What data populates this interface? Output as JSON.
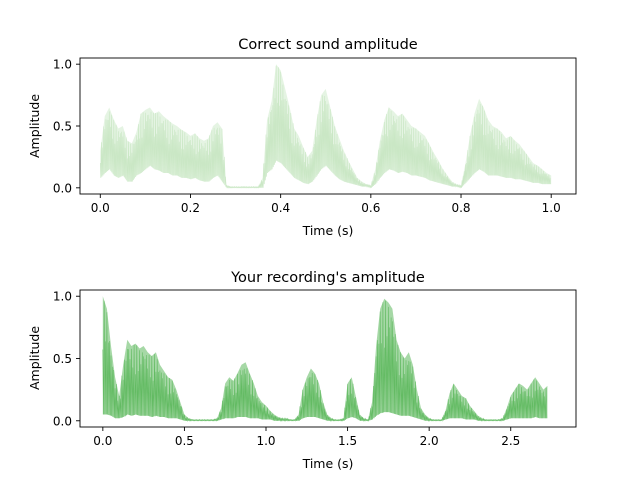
{
  "chart_data": [
    {
      "type": "line",
      "title": "Correct sound amplitude",
      "xlabel": "Time (s)",
      "ylabel": "Amplitude",
      "xlim": [
        -0.045,
        1.055
      ],
      "ylim": [
        -0.05,
        1.05
      ],
      "xticks": [
        0.0,
        0.2,
        0.4,
        0.6,
        0.8,
        1.0
      ],
      "xtick_labels": [
        "0.0",
        "0.2",
        "0.4",
        "0.6",
        "0.8",
        "1.0"
      ],
      "yticks": [
        0.0,
        0.5,
        1.0
      ],
      "ytick_labels": [
        "0.0",
        "0.5",
        "1.0"
      ],
      "grid": false,
      "series": [
        {
          "color": "#c6e6c1",
          "x": [
            0.0,
            0.01,
            0.02,
            0.03,
            0.04,
            0.05,
            0.06,
            0.07,
            0.08,
            0.09,
            0.1,
            0.11,
            0.12,
            0.13,
            0.14,
            0.15,
            0.16,
            0.17,
            0.18,
            0.19,
            0.2,
            0.21,
            0.22,
            0.23,
            0.24,
            0.25,
            0.26,
            0.27,
            0.28,
            0.29,
            0.3,
            0.31,
            0.32,
            0.33,
            0.34,
            0.35,
            0.36,
            0.37,
            0.38,
            0.39,
            0.4,
            0.41,
            0.42,
            0.43,
            0.44,
            0.45,
            0.46,
            0.47,
            0.48,
            0.49,
            0.5,
            0.51,
            0.52,
            0.53,
            0.54,
            0.55,
            0.56,
            0.57,
            0.58,
            0.59,
            0.6,
            0.61,
            0.62,
            0.63,
            0.64,
            0.65,
            0.66,
            0.67,
            0.68,
            0.69,
            0.7,
            0.71,
            0.72,
            0.73,
            0.74,
            0.75,
            0.76,
            0.77,
            0.78,
            0.79,
            0.8,
            0.81,
            0.82,
            0.83,
            0.84,
            0.85,
            0.86,
            0.87,
            0.88,
            0.89,
            0.9,
            0.91,
            0.92,
            0.93,
            0.94,
            0.95,
            0.96,
            0.97,
            0.98,
            0.99,
            1.0
          ],
          "max": [
            0.3,
            0.58,
            0.65,
            0.55,
            0.48,
            0.5,
            0.38,
            0.36,
            0.45,
            0.6,
            0.63,
            0.65,
            0.6,
            0.62,
            0.58,
            0.55,
            0.52,
            0.5,
            0.47,
            0.45,
            0.42,
            0.44,
            0.4,
            0.38,
            0.4,
            0.5,
            0.53,
            0.48,
            0.02,
            0.01,
            0.01,
            0.01,
            0.01,
            0.01,
            0.01,
            0.01,
            0.08,
            0.55,
            0.7,
            1.0,
            0.95,
            0.8,
            0.65,
            0.48,
            0.42,
            0.33,
            0.25,
            0.3,
            0.55,
            0.75,
            0.8,
            0.65,
            0.5,
            0.4,
            0.3,
            0.22,
            0.15,
            0.08,
            0.05,
            0.03,
            0.02,
            0.15,
            0.38,
            0.55,
            0.65,
            0.62,
            0.58,
            0.6,
            0.55,
            0.5,
            0.48,
            0.45,
            0.42,
            0.35,
            0.28,
            0.22,
            0.15,
            0.1,
            0.05,
            0.03,
            0.02,
            0.2,
            0.42,
            0.6,
            0.72,
            0.65,
            0.55,
            0.5,
            0.48,
            0.45,
            0.4,
            0.42,
            0.38,
            0.35,
            0.3,
            0.25,
            0.2,
            0.18,
            0.15,
            0.12,
            0.1
          ],
          "min": [
            0.08,
            0.12,
            0.15,
            0.1,
            0.08,
            0.1,
            0.05,
            0.05,
            0.1,
            0.12,
            0.15,
            0.18,
            0.15,
            0.14,
            0.12,
            0.12,
            0.1,
            0.1,
            0.08,
            0.08,
            0.07,
            0.08,
            0.06,
            0.05,
            0.05,
            0.08,
            0.1,
            0.05,
            0.0,
            0.0,
            0.0,
            0.0,
            0.0,
            0.0,
            0.0,
            0.0,
            0.0,
            0.12,
            0.15,
            0.22,
            0.2,
            0.16,
            0.12,
            0.08,
            0.06,
            0.04,
            0.03,
            0.05,
            0.1,
            0.15,
            0.18,
            0.14,
            0.1,
            0.07,
            0.05,
            0.04,
            0.03,
            0.02,
            0.01,
            0.01,
            0.0,
            0.03,
            0.08,
            0.12,
            0.15,
            0.14,
            0.12,
            0.13,
            0.12,
            0.1,
            0.1,
            0.09,
            0.08,
            0.06,
            0.05,
            0.04,
            0.03,
            0.02,
            0.01,
            0.01,
            0.0,
            0.04,
            0.08,
            0.12,
            0.15,
            0.13,
            0.1,
            0.1,
            0.1,
            0.09,
            0.08,
            0.08,
            0.07,
            0.07,
            0.06,
            0.05,
            0.04,
            0.04,
            0.03,
            0.03,
            0.03
          ]
        }
      ]
    },
    {
      "type": "line",
      "title": "Your recording's amplitude",
      "xlabel": "Time (s)",
      "ylabel": "Amplitude",
      "xlim": [
        -0.14,
        2.9
      ],
      "ylim": [
        -0.05,
        1.05
      ],
      "xticks": [
        0.0,
        0.5,
        1.0,
        1.5,
        2.0,
        2.5
      ],
      "xtick_labels": [
        "0.0",
        "0.5",
        "1.0",
        "1.5",
        "2.0",
        "2.5"
      ],
      "yticks": [
        0.0,
        0.5,
        1.0
      ],
      "ytick_labels": [
        "0.0",
        "0.5",
        "1.0"
      ],
      "grid": false,
      "series": [
        {
          "color": "#5cb85c",
          "x": [
            0.0,
            0.025,
            0.05,
            0.075,
            0.1,
            0.125,
            0.15,
            0.175,
            0.2,
            0.225,
            0.25,
            0.275,
            0.3,
            0.325,
            0.35,
            0.375,
            0.4,
            0.425,
            0.45,
            0.475,
            0.5,
            0.525,
            0.55,
            0.575,
            0.6,
            0.625,
            0.65,
            0.675,
            0.7,
            0.725,
            0.75,
            0.775,
            0.8,
            0.825,
            0.85,
            0.875,
            0.9,
            0.925,
            0.95,
            0.975,
            1.0,
            1.025,
            1.05,
            1.075,
            1.1,
            1.125,
            1.15,
            1.175,
            1.2,
            1.225,
            1.25,
            1.275,
            1.3,
            1.325,
            1.35,
            1.375,
            1.4,
            1.425,
            1.45,
            1.475,
            1.5,
            1.525,
            1.55,
            1.575,
            1.6,
            1.625,
            1.65,
            1.675,
            1.7,
            1.725,
            1.75,
            1.775,
            1.8,
            1.825,
            1.85,
            1.875,
            1.9,
            1.925,
            1.95,
            1.975,
            2.0,
            2.025,
            2.05,
            2.075,
            2.1,
            2.125,
            2.15,
            2.175,
            2.2,
            2.225,
            2.25,
            2.275,
            2.3,
            2.325,
            2.35,
            2.375,
            2.4,
            2.425,
            2.45,
            2.475,
            2.5,
            2.525,
            2.55,
            2.575,
            2.6,
            2.625,
            2.65,
            2.675,
            2.7,
            2.725
          ],
          "max": [
            1.0,
            0.9,
            0.6,
            0.35,
            0.2,
            0.45,
            0.65,
            0.6,
            0.62,
            0.58,
            0.6,
            0.55,
            0.52,
            0.55,
            0.45,
            0.4,
            0.35,
            0.33,
            0.25,
            0.15,
            0.05,
            0.02,
            0.01,
            0.01,
            0.01,
            0.01,
            0.01,
            0.01,
            0.02,
            0.1,
            0.3,
            0.35,
            0.32,
            0.38,
            0.45,
            0.47,
            0.38,
            0.3,
            0.2,
            0.15,
            0.12,
            0.08,
            0.05,
            0.03,
            0.02,
            0.02,
            0.01,
            0.01,
            0.05,
            0.25,
            0.35,
            0.42,
            0.38,
            0.3,
            0.15,
            0.05,
            0.02,
            0.01,
            0.01,
            0.02,
            0.3,
            0.35,
            0.2,
            0.05,
            0.02,
            0.01,
            0.15,
            0.6,
            0.9,
            0.98,
            0.95,
            0.9,
            0.65,
            0.55,
            0.5,
            0.55,
            0.45,
            0.25,
            0.1,
            0.05,
            0.02,
            0.01,
            0.01,
            0.01,
            0.08,
            0.22,
            0.3,
            0.25,
            0.2,
            0.18,
            0.12,
            0.08,
            0.04,
            0.02,
            0.01,
            0.01,
            0.01,
            0.01,
            0.02,
            0.1,
            0.2,
            0.25,
            0.3,
            0.28,
            0.25,
            0.3,
            0.35,
            0.3,
            0.25,
            0.28
          ],
          "min": [
            0.05,
            0.05,
            0.04,
            0.02,
            0.02,
            0.03,
            0.05,
            0.04,
            0.05,
            0.04,
            0.04,
            0.04,
            0.03,
            0.04,
            0.03,
            0.03,
            0.02,
            0.02,
            0.02,
            0.01,
            0.0,
            0.0,
            0.0,
            0.0,
            0.0,
            0.0,
            0.0,
            0.0,
            0.0,
            0.01,
            0.02,
            0.02,
            0.02,
            0.03,
            0.03,
            0.03,
            0.02,
            0.02,
            0.02,
            0.01,
            0.01,
            0.01,
            0.0,
            0.0,
            0.0,
            0.0,
            0.0,
            0.0,
            0.0,
            0.02,
            0.03,
            0.03,
            0.03,
            0.02,
            0.01,
            0.0,
            0.0,
            0.0,
            0.0,
            0.0,
            0.02,
            0.03,
            0.02,
            0.0,
            0.0,
            0.0,
            0.01,
            0.04,
            0.06,
            0.07,
            0.07,
            0.06,
            0.05,
            0.04,
            0.04,
            0.04,
            0.03,
            0.02,
            0.01,
            0.0,
            0.0,
            0.0,
            0.0,
            0.0,
            0.01,
            0.02,
            0.02,
            0.02,
            0.02,
            0.01,
            0.01,
            0.01,
            0.0,
            0.0,
            0.0,
            0.0,
            0.0,
            0.0,
            0.0,
            0.01,
            0.02,
            0.02,
            0.02,
            0.02,
            0.02,
            0.02,
            0.03,
            0.02,
            0.02,
            0.02
          ]
        }
      ]
    }
  ]
}
